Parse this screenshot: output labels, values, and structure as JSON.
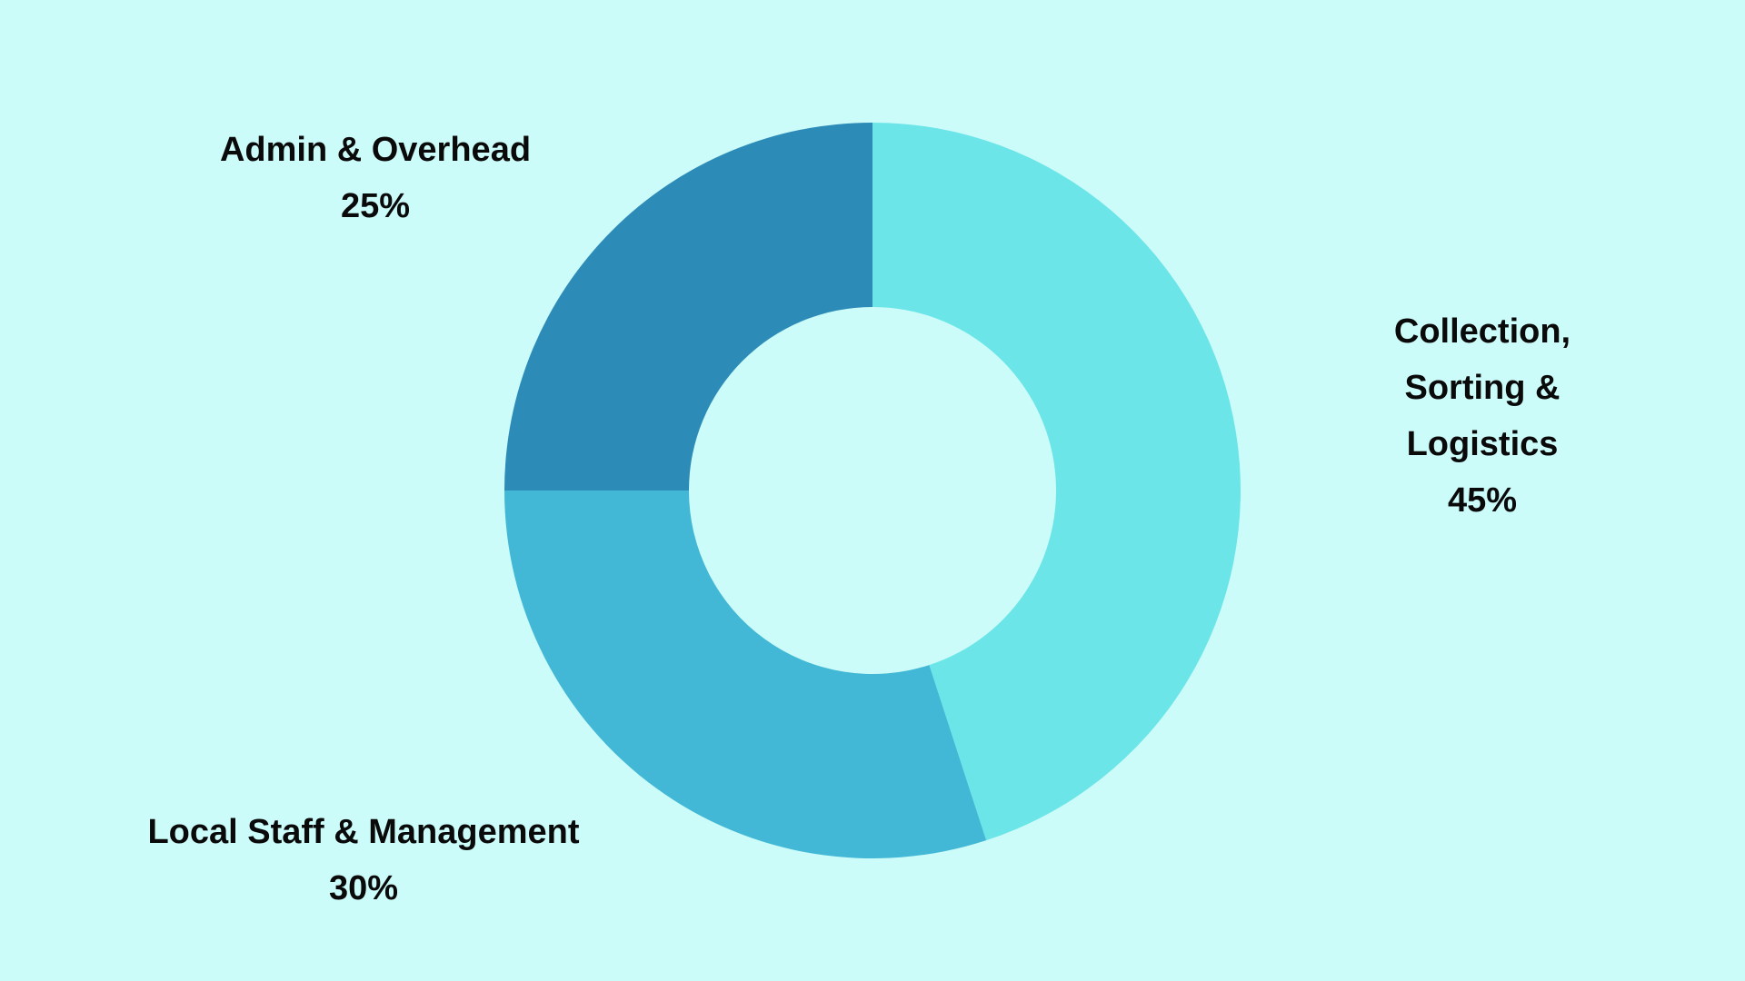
{
  "chart_data": {
    "type": "donut",
    "categories": [
      "Collection,\nSorting & Logistics",
      "Local Staff & Management",
      "Admin & Overhead"
    ],
    "values": [
      45,
      30,
      25
    ],
    "value_labels": [
      "45%",
      "30%",
      "25%"
    ],
    "colors": [
      "#6ce5e8",
      "#43b8d6",
      "#2d8bb8"
    ]
  }
}
